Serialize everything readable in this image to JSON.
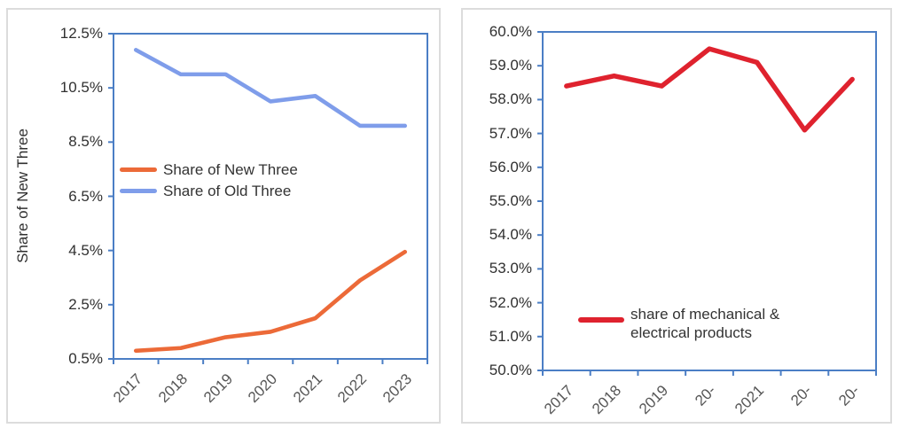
{
  "colors": {
    "axis": "#4B7EC5",
    "panel_border": "#DCDCDC",
    "y_label_text": "#303030",
    "x_label_text": "#565656"
  },
  "chart_data": [
    {
      "type": "line",
      "title": "",
      "ylabel": "Share of New Three",
      "xlabel": "",
      "grid": false,
      "legend_position": "inside middle-left",
      "ylim": [
        0.5,
        12.5
      ],
      "y_ticks": [
        "12.5%",
        "10.5%",
        "8.5%",
        "6.5%",
        "4.5%",
        "2.5%",
        "0.5%"
      ],
      "categories": [
        "2017",
        "2018",
        "2019",
        "2020",
        "2021",
        "2022",
        "2023"
      ],
      "series": [
        {
          "name": "Share of New Three",
          "color": "#EC6A38",
          "values": [
            0.8,
            0.9,
            1.3,
            1.5,
            2.0,
            3.4,
            4.45
          ]
        },
        {
          "name": "Share of Old Three",
          "color": "#7F9DEA",
          "values": [
            11.9,
            11.0,
            11.0,
            10.0,
            10.2,
            9.1,
            9.1
          ]
        }
      ]
    },
    {
      "type": "line",
      "title": "",
      "ylabel": "",
      "xlabel": "",
      "grid": false,
      "legend_position": "inside bottom",
      "ylim": [
        50.0,
        60.0
      ],
      "y_ticks": [
        "60.0%",
        "59.0%",
        "58.0%",
        "57.0%",
        "56.0%",
        "55.0%",
        "54.0%",
        "53.0%",
        "52.0%",
        "51.0%",
        "50.0%"
      ],
      "categories": [
        "2017",
        "2018",
        "2019",
        "20-",
        "2021",
        "20-",
        "20-"
      ],
      "series": [
        {
          "name": "share of mechanical & electrical products",
          "color": "#DF222E",
          "values": [
            58.4,
            58.7,
            58.4,
            59.5,
            59.1,
            57.1,
            58.6
          ]
        }
      ]
    }
  ]
}
